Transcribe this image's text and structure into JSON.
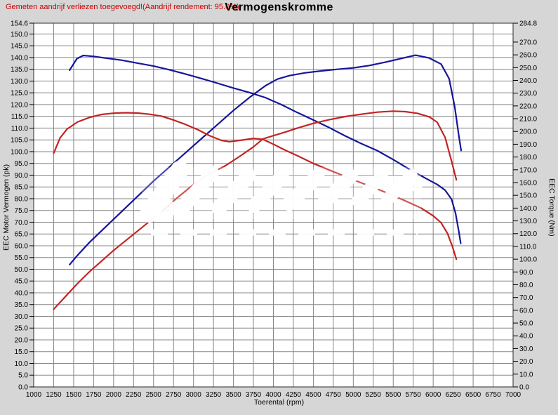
{
  "header": {
    "note": "Gemeten aandrijf verliezen toegevoegd!(Aandrijf rendement: 95.0%)",
    "title": "Vermogenskromme"
  },
  "axes": {
    "x_label": "Toerental (rpm)",
    "y_left_label": "EEC Motor Vermogen (pk)",
    "y_right_label": "EEC Torque (Nm)"
  },
  "colors": {
    "background": "#d6d6d6",
    "plot_background": "#ffffff",
    "grid": "#868686",
    "border": "#2b2b2b",
    "note_red": "#cc0000",
    "series_blue": "#16169b",
    "series_red": "#c42424",
    "watermark": "#ffffff"
  },
  "chart_data": {
    "type": "line",
    "title": "Vermogenskromme",
    "xlabel": "Toerental (rpm)",
    "ylabel_left": "EEC Motor Vermogen (pk)",
    "ylabel_right": "EEC Torque (Nm)",
    "grid": true,
    "legend_position": "none",
    "xlim": [
      1000,
      7000
    ],
    "ylim_left": [
      0,
      154.6
    ],
    "ylim_right": [
      0,
      284.8
    ],
    "x_ticks": [
      1000,
      1250,
      1500,
      1750,
      2000,
      2250,
      2500,
      2750,
      3000,
      3250,
      3500,
      3750,
      4000,
      4250,
      4500,
      4750,
      5000,
      5250,
      5500,
      5750,
      6000,
      6250,
      6500,
      6750,
      7000
    ],
    "y_left_ticks": [
      154.6,
      150,
      145,
      140,
      135,
      130,
      125,
      120,
      115,
      110,
      105,
      100,
      95,
      90,
      85,
      80,
      75,
      70,
      65,
      60,
      55,
      50,
      45,
      40,
      35,
      30,
      25,
      20,
      15,
      10,
      5,
      0
    ],
    "y_right_ticks": [
      284.8,
      270,
      260,
      250,
      240,
      230,
      220,
      210,
      200,
      190,
      180,
      170,
      160,
      150,
      140,
      130,
      120,
      110,
      100,
      90,
      80,
      70,
      60,
      50,
      40,
      30,
      20,
      10,
      0
    ],
    "series": [
      {
        "name": "blue-power",
        "color_key": "series_blue",
        "axis": "left",
        "unit": "pk",
        "points": [
          [
            1450,
            52
          ],
          [
            1550,
            56
          ],
          [
            1700,
            61.5
          ],
          [
            1900,
            68
          ],
          [
            2100,
            74.5
          ],
          [
            2300,
            81
          ],
          [
            2500,
            87.5
          ],
          [
            2700,
            93.5
          ],
          [
            2900,
            99.5
          ],
          [
            3100,
            105.5
          ],
          [
            3300,
            111.5
          ],
          [
            3500,
            117.5
          ],
          [
            3700,
            123
          ],
          [
            3900,
            128
          ],
          [
            4050,
            130.8
          ],
          [
            4200,
            132.3
          ],
          [
            4400,
            133.5
          ],
          [
            4600,
            134.3
          ],
          [
            4800,
            135
          ],
          [
            5000,
            135.6
          ],
          [
            5200,
            136.6
          ],
          [
            5400,
            138
          ],
          [
            5600,
            139.6
          ],
          [
            5780,
            141
          ],
          [
            5950,
            139.8
          ],
          [
            6100,
            137.2
          ],
          [
            6200,
            131
          ],
          [
            6270,
            119
          ],
          [
            6320,
            107
          ],
          [
            6350,
            100.5
          ]
        ]
      },
      {
        "name": "blue-torque",
        "color_key": "series_blue",
        "axis": "right",
        "unit": "Nm",
        "points": [
          [
            1450,
            248
          ],
          [
            1540,
            257
          ],
          [
            1620,
            259.5
          ],
          [
            1750,
            258.8
          ],
          [
            1900,
            257.5
          ],
          [
            2100,
            255.8
          ],
          [
            2300,
            253.5
          ],
          [
            2500,
            251.2
          ],
          [
            2700,
            248.3
          ],
          [
            2900,
            245
          ],
          [
            3100,
            241.5
          ],
          [
            3300,
            237.8
          ],
          [
            3500,
            234
          ],
          [
            3700,
            230.5
          ],
          [
            3900,
            226.5
          ],
          [
            4100,
            221
          ],
          [
            4300,
            214.8
          ],
          [
            4500,
            209
          ],
          [
            4700,
            203
          ],
          [
            4900,
            196.5
          ],
          [
            5100,
            190.5
          ],
          [
            5300,
            185
          ],
          [
            5500,
            178
          ],
          [
            5700,
            170.5
          ],
          [
            5900,
            163.5
          ],
          [
            6050,
            158.5
          ],
          [
            6150,
            154
          ],
          [
            6230,
            147
          ],
          [
            6280,
            136
          ],
          [
            6320,
            122
          ],
          [
            6345,
            112.5
          ]
        ]
      },
      {
        "name": "red-power",
        "color_key": "series_red",
        "axis": "left",
        "unit": "pk",
        "points": [
          [
            1250,
            33
          ],
          [
            1400,
            38.5
          ],
          [
            1550,
            44
          ],
          [
            1700,
            49
          ],
          [
            1850,
            53.5
          ],
          [
            2000,
            58
          ],
          [
            2200,
            63.5
          ],
          [
            2400,
            69
          ],
          [
            2600,
            74.5
          ],
          [
            2800,
            80.5
          ],
          [
            3000,
            86
          ],
          [
            3200,
            90.5
          ],
          [
            3400,
            94
          ],
          [
            3600,
            98.5
          ],
          [
            3750,
            102
          ],
          [
            3870,
            105.4
          ],
          [
            4000,
            106.8
          ],
          [
            4150,
            108.3
          ],
          [
            4300,
            110
          ],
          [
            4500,
            112
          ],
          [
            4700,
            113.6
          ],
          [
            4900,
            114.9
          ],
          [
            5100,
            115.9
          ],
          [
            5300,
            116.8
          ],
          [
            5500,
            117.2
          ],
          [
            5650,
            117
          ],
          [
            5800,
            116.3
          ],
          [
            5950,
            114.8
          ],
          [
            6050,
            112.5
          ],
          [
            6150,
            106
          ],
          [
            6230,
            96
          ],
          [
            6290,
            88
          ]
        ]
      },
      {
        "name": "red-torque",
        "color_key": "series_red",
        "axis": "right",
        "unit": "Nm",
        "points": [
          [
            1250,
            183
          ],
          [
            1330,
            195
          ],
          [
            1420,
            202
          ],
          [
            1550,
            207.5
          ],
          [
            1700,
            211
          ],
          [
            1850,
            213.3
          ],
          [
            2000,
            214.3
          ],
          [
            2150,
            214.7
          ],
          [
            2300,
            214.4
          ],
          [
            2450,
            213.5
          ],
          [
            2600,
            212
          ],
          [
            2750,
            209
          ],
          [
            2900,
            205.5
          ],
          [
            3050,
            201.5
          ],
          [
            3200,
            196.8
          ],
          [
            3350,
            193
          ],
          [
            3450,
            192
          ],
          [
            3600,
            193.2
          ],
          [
            3750,
            194.6
          ],
          [
            3870,
            193.8
          ],
          [
            4000,
            190
          ],
          [
            4150,
            185.3
          ],
          [
            4300,
            181
          ],
          [
            4500,
            175
          ],
          [
            4700,
            169.8
          ],
          [
            4900,
            164.7
          ],
          [
            5100,
            159.8
          ],
          [
            5300,
            155
          ],
          [
            5500,
            149.8
          ],
          [
            5700,
            144.3
          ],
          [
            5850,
            140
          ],
          [
            6000,
            134
          ],
          [
            6100,
            128.5
          ],
          [
            6180,
            120
          ],
          [
            6240,
            110
          ],
          [
            6290,
            100
          ]
        ]
      }
    ]
  }
}
